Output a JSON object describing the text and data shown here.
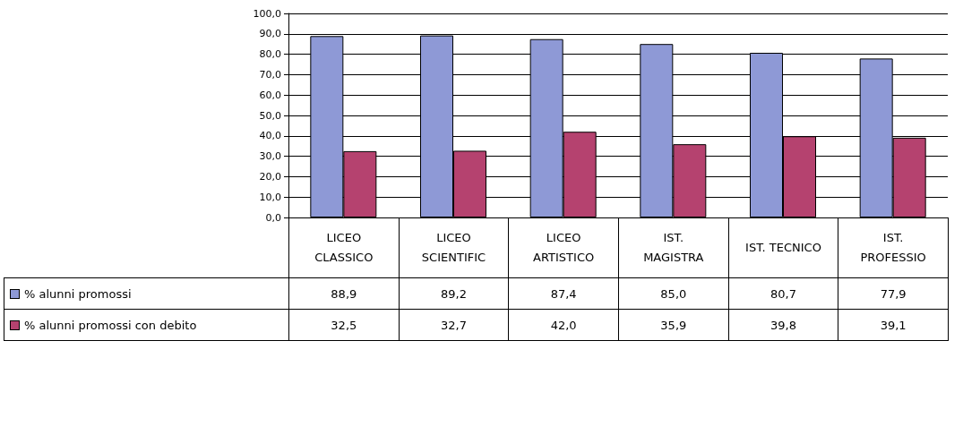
{
  "chart_data": {
    "type": "bar",
    "categories": [
      "LICEO CLASSICO",
      "LICEO SCIENTIFIC",
      "LICEO ARTISTICO",
      "IST. MAGISTRA",
      "IST. TECNICO",
      "IST. PROFESSIO"
    ],
    "series": [
      {
        "name": "% alunni promossi",
        "color": "#8e99d6",
        "values": [
          88.9,
          89.2,
          87.4,
          85.0,
          80.7,
          77.9
        ],
        "value_labels": [
          "88,9",
          "89,2",
          "87,4",
          "85,0",
          "80,7",
          "77,9"
        ]
      },
      {
        "name": "% alunni promossi con debito",
        "color": "#b5426f",
        "values": [
          32.5,
          32.7,
          42.0,
          35.9,
          39.8,
          39.1
        ],
        "value_labels": [
          "32,5",
          "32,7",
          "42,0",
          "35,9",
          "39,8",
          "39,1"
        ]
      }
    ],
    "ylim": [
      0,
      100
    ],
    "yticks": [
      {
        "value": 0,
        "label": "0,0"
      },
      {
        "value": 10,
        "label": "10,0"
      },
      {
        "value": 20,
        "label": "20,0"
      },
      {
        "value": 30,
        "label": "30,0"
      },
      {
        "value": 40,
        "label": "40,0"
      },
      {
        "value": 50,
        "label": "50,0"
      },
      {
        "value": 60,
        "label": "60,0"
      },
      {
        "value": 70,
        "label": "70,0"
      },
      {
        "value": 80,
        "label": "80,0"
      },
      {
        "value": 90,
        "label": "90,0"
      },
      {
        "value": 100,
        "label": "100,0"
      }
    ],
    "grid": "y",
    "legend": "bottom"
  }
}
